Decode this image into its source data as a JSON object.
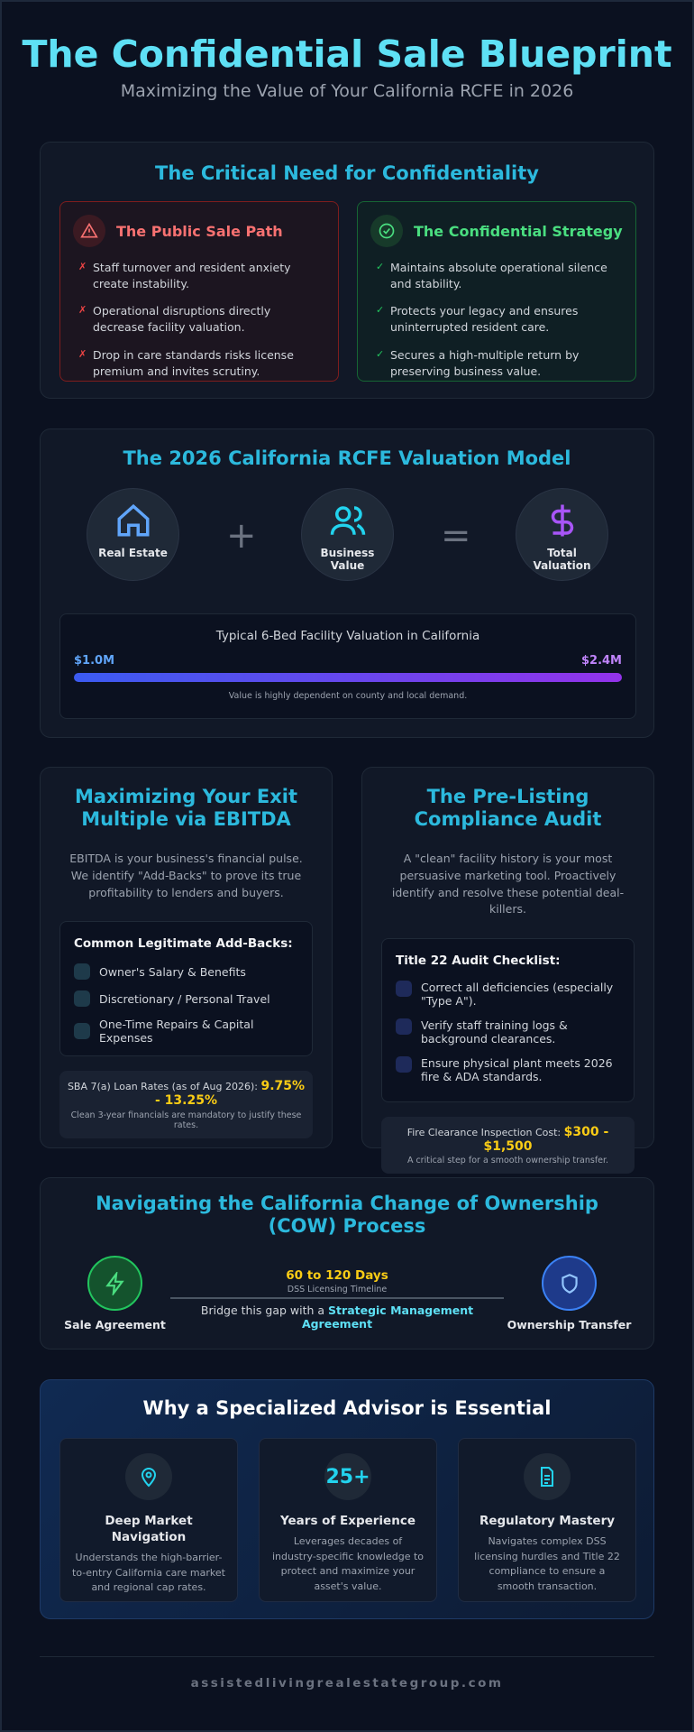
{
  "header": {
    "title": "The Confidential Sale Blueprint",
    "subtitle": "Maximizing the Value of Your California RCFE in 2026"
  },
  "confidentiality": {
    "title": "The Critical Need for Confidentiality",
    "public": {
      "title": "The Public Sale Path",
      "items": [
        "Staff turnover and resident anxiety create instability.",
        "Operational disruptions directly decrease facility valuation.",
        "Drop in care standards risks license premium and invites scrutiny."
      ]
    },
    "confidential": {
      "title": "The Confidential Strategy",
      "items": [
        "Maintains absolute operational silence and stability.",
        "Protects your legacy and ensures uninterrupted resident care.",
        "Secures a high-multiple return by preserving business value."
      ]
    }
  },
  "valuation": {
    "title": "The 2026 California RCFE Valuation Model",
    "components": [
      "Real Estate",
      "Business Value",
      "Total Valuation"
    ],
    "range": {
      "caption": "Typical 6-Bed Facility Valuation in California",
      "low": "$1.0M",
      "high": "$2.4M",
      "note": "Value is highly dependent on county and local demand."
    }
  },
  "ebitda": {
    "title": "Maximizing Your Exit Multiple via EBITDA",
    "intro": "EBITDA is your business's financial pulse. We identify \"Add-Backs\" to prove its true profitability to lenders and buyers.",
    "addbacks": {
      "title": "Common Legitimate Add-Backs:",
      "items": [
        "Owner's Salary & Benefits",
        "Discretionary / Personal Travel",
        "One-Time Repairs & Capital Expenses"
      ]
    },
    "loan": {
      "label": "SBA 7(a) Loan Rates (as of Aug 2026):",
      "value": "9.75% - 13.25%",
      "note": "Clean 3-year financials are mandatory to justify these rates."
    }
  },
  "audit": {
    "title": "The Pre-Listing Compliance Audit",
    "intro": "A \"clean\" facility history is your most persuasive marketing tool. Proactively identify and resolve these potential deal-killers.",
    "checklist": {
      "title": "Title 22 Audit Checklist:",
      "items": [
        "Correct all deficiencies (especially \"Type A\").",
        "Verify staff training logs & background clearances.",
        "Ensure physical plant meets 2026 fire & ADA standards."
      ]
    },
    "fire": {
      "label": "Fire Clearance Inspection Cost:",
      "value": "$300 - $1,500",
      "note": "A critical step for a smooth ownership transfer."
    }
  },
  "cow": {
    "title": "Navigating the California Change of Ownership (COW) Process",
    "start": "Sale Agreement",
    "days": "60 to 120 Days",
    "days_caption": "DSS Licensing Timeline",
    "bridge_text": "Bridge this gap with a",
    "bridge_link": "Strategic Management Agreement",
    "end": "Ownership Transfer"
  },
  "advisor": {
    "title": "Why a Specialized Advisor is Essential",
    "cards": [
      {
        "title": "Deep Market Navigation",
        "text": "Understands the high-barrier-to-entry California care market and regional cap rates."
      },
      {
        "badge": "25+",
        "title": "Years of Experience",
        "text": "Leverages decades of industry-specific knowledge to protect and maximize your asset's value."
      },
      {
        "title": "Regulatory Mastery",
        "text": "Navigates complex DSS licensing hurdles and Title 22 compliance to ensure a smooth transaction."
      }
    ]
  },
  "footer": "assistedlivingrealestategroup.com"
}
